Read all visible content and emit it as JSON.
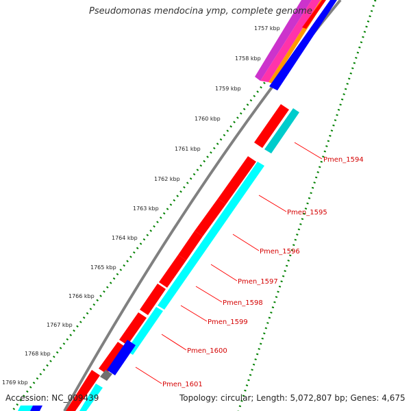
{
  "title": "Pseudomonas mendocina ymp, complete genome",
  "footer": {
    "accession": "Accession: NC_009439",
    "stats": "Topology: circular; Length: 5,072,807 bp; Genes: 4,675"
  },
  "colors": {
    "forward_cds": "#ff0000",
    "reverse_cds": "#00ffff",
    "rna": "#0000ff",
    "backbone": "#808080",
    "gc_dots": "#008000",
    "label_line": "#ff0000"
  },
  "ticks": [
    "1757 kbp",
    "1758 kbp",
    "1759 kbp",
    "1760 kbp",
    "1761 kbp",
    "1762 kbp",
    "1763 kbp",
    "1764 kbp",
    "1765 kbp",
    "1766 kbp",
    "1767 kbp",
    "1768 kbp",
    "1769 kbp"
  ],
  "genes": [
    "Pmen_1594",
    "Pmen_1595",
    "Pmen_1596",
    "Pmen_1597",
    "Pmen_1598",
    "Pmen_1599",
    "Pmen_1600",
    "Pmen_1601"
  ]
}
